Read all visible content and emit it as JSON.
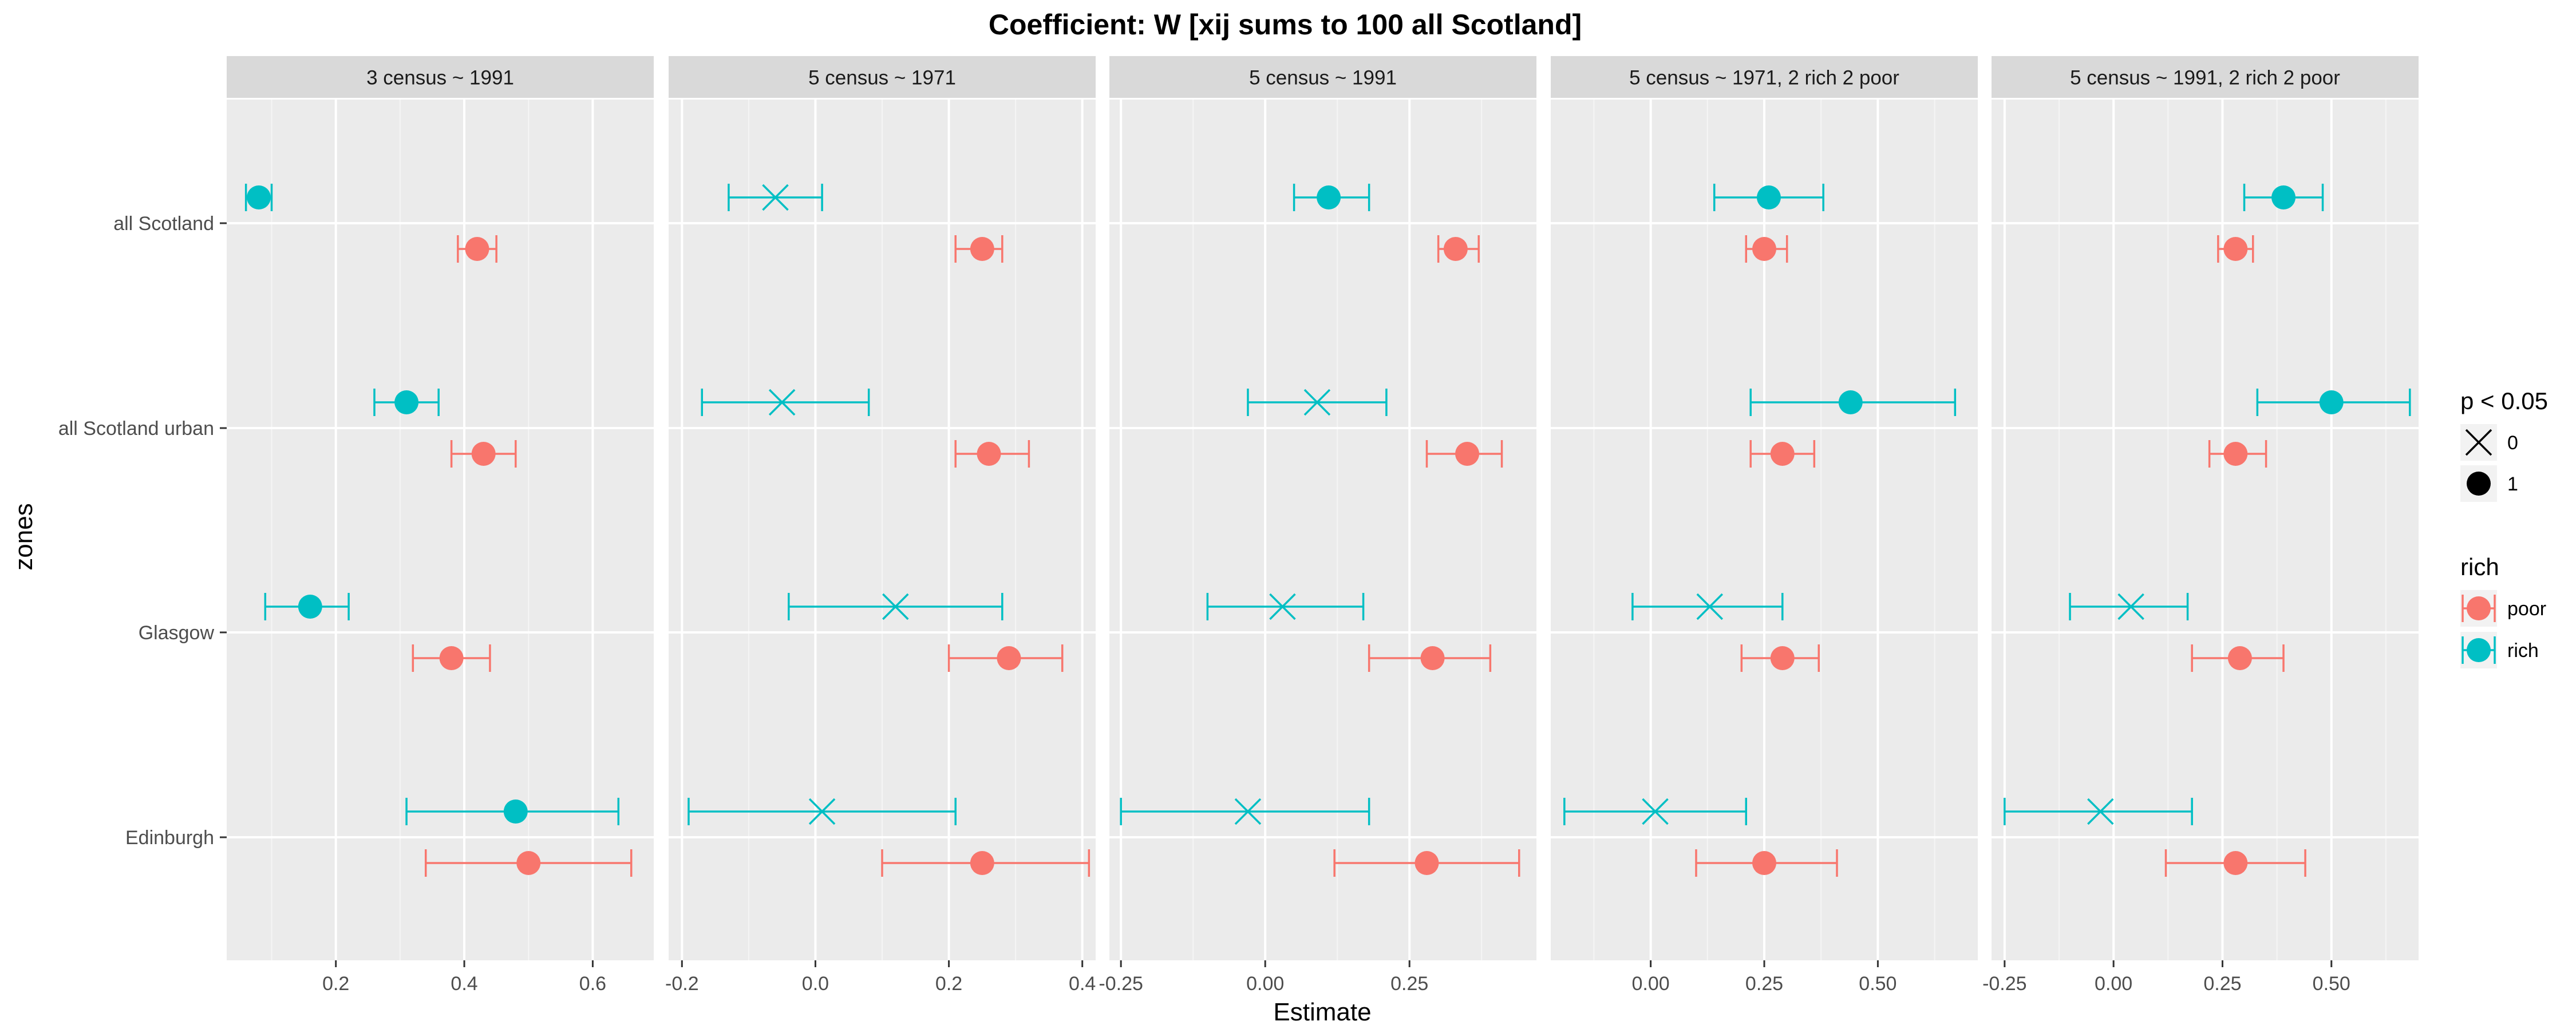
{
  "chart_data": {
    "type": "errorbar",
    "title": "Coefficient: W [xij sums to 100 all Scotland]",
    "xlabel": "Estimate",
    "ylabel": "zones",
    "zones": [
      "all Scotland",
      "all Scotland urban",
      "Glasgow",
      "Edinburgh"
    ],
    "legends": {
      "shape": {
        "title": "p < 0.05",
        "entries": [
          "0",
          "1"
        ]
      },
      "color": {
        "title": "rich",
        "entries": [
          "poor",
          "rich"
        ]
      }
    },
    "colors": {
      "poor": "#F8766D",
      "rich": "#00BFC4"
    },
    "panels": [
      {
        "label": "3 census ~ 1991",
        "xlim": [
          0.03,
          0.695
        ],
        "xticks": [
          0.2,
          0.4,
          0.6
        ],
        "xtick_labels": [
          "0.2",
          "0.4",
          "0.6"
        ],
        "points": [
          {
            "zone": "all Scotland",
            "group": "rich",
            "est": 0.08,
            "lo": 0.06,
            "hi": 0.1,
            "p": "1"
          },
          {
            "zone": "all Scotland",
            "group": "poor",
            "est": 0.42,
            "lo": 0.39,
            "hi": 0.45,
            "p": "1"
          },
          {
            "zone": "all Scotland urban",
            "group": "rich",
            "est": 0.31,
            "lo": 0.26,
            "hi": 0.36,
            "p": "1"
          },
          {
            "zone": "all Scotland urban",
            "group": "poor",
            "est": 0.43,
            "lo": 0.38,
            "hi": 0.48,
            "p": "1"
          },
          {
            "zone": "Glasgow",
            "group": "rich",
            "est": 0.16,
            "lo": 0.09,
            "hi": 0.22,
            "p": "1"
          },
          {
            "zone": "Glasgow",
            "group": "poor",
            "est": 0.38,
            "lo": 0.32,
            "hi": 0.44,
            "p": "1"
          },
          {
            "zone": "Edinburgh",
            "group": "rich",
            "est": 0.48,
            "lo": 0.31,
            "hi": 0.64,
            "p": "1"
          },
          {
            "zone": "Edinburgh",
            "group": "poor",
            "est": 0.5,
            "lo": 0.34,
            "hi": 0.66,
            "p": "1"
          }
        ]
      },
      {
        "label": "5 census ~ 1971",
        "xlim": [
          -0.22,
          0.42
        ],
        "xticks": [
          -0.2,
          0.0,
          0.2,
          0.4
        ],
        "xtick_labels": [
          "-0.2",
          "0.0",
          "0.2",
          "0.4"
        ],
        "points": [
          {
            "zone": "all Scotland",
            "group": "rich",
            "est": -0.06,
            "lo": -0.13,
            "hi": 0.01,
            "p": "0"
          },
          {
            "zone": "all Scotland",
            "group": "poor",
            "est": 0.25,
            "lo": 0.21,
            "hi": 0.28,
            "p": "1"
          },
          {
            "zone": "all Scotland urban",
            "group": "rich",
            "est": -0.05,
            "lo": -0.17,
            "hi": 0.08,
            "p": "0"
          },
          {
            "zone": "all Scotland urban",
            "group": "poor",
            "est": 0.26,
            "lo": 0.21,
            "hi": 0.32,
            "p": "1"
          },
          {
            "zone": "Glasgow",
            "group": "rich",
            "est": 0.12,
            "lo": -0.04,
            "hi": 0.28,
            "p": "0"
          },
          {
            "zone": "Glasgow",
            "group": "poor",
            "est": 0.29,
            "lo": 0.2,
            "hi": 0.37,
            "p": "1"
          },
          {
            "zone": "Edinburgh",
            "group": "rich",
            "est": 0.01,
            "lo": -0.19,
            "hi": 0.21,
            "p": "0"
          },
          {
            "zone": "Edinburgh",
            "group": "poor",
            "est": 0.25,
            "lo": 0.1,
            "hi": 0.41,
            "p": "1"
          }
        ]
      },
      {
        "label": "5 census ~ 1991",
        "xlim": [
          -0.27,
          0.47
        ],
        "xticks": [
          -0.25,
          0.0,
          0.25
        ],
        "xtick_labels": [
          "-0.25",
          "0.00",
          "0.25"
        ],
        "points": [
          {
            "zone": "all Scotland",
            "group": "rich",
            "est": 0.11,
            "lo": 0.05,
            "hi": 0.18,
            "p": "1"
          },
          {
            "zone": "all Scotland",
            "group": "poor",
            "est": 0.33,
            "lo": 0.3,
            "hi": 0.37,
            "p": "1"
          },
          {
            "zone": "all Scotland urban",
            "group": "rich",
            "est": 0.09,
            "lo": -0.03,
            "hi": 0.21,
            "p": "0"
          },
          {
            "zone": "all Scotland urban",
            "group": "poor",
            "est": 0.35,
            "lo": 0.28,
            "hi": 0.41,
            "p": "1"
          },
          {
            "zone": "Glasgow",
            "group": "rich",
            "est": 0.03,
            "lo": -0.1,
            "hi": 0.17,
            "p": "0"
          },
          {
            "zone": "Glasgow",
            "group": "poor",
            "est": 0.29,
            "lo": 0.18,
            "hi": 0.39,
            "p": "1"
          },
          {
            "zone": "Edinburgh",
            "group": "rich",
            "est": -0.03,
            "lo": -0.25,
            "hi": 0.18,
            "p": "0"
          },
          {
            "zone": "Edinburgh",
            "group": "poor",
            "est": 0.28,
            "lo": 0.12,
            "hi": 0.44,
            "p": "1"
          }
        ]
      },
      {
        "label": "5 census ~ 1971, 2 rich 2 poor",
        "xlim": [
          -0.22,
          0.72
        ],
        "xticks": [
          0.0,
          0.25,
          0.5
        ],
        "xtick_labels": [
          "0.00",
          "0.25",
          "0.50"
        ],
        "points": [
          {
            "zone": "all Scotland",
            "group": "rich",
            "est": 0.26,
            "lo": 0.14,
            "hi": 0.38,
            "p": "1"
          },
          {
            "zone": "all Scotland",
            "group": "poor",
            "est": 0.25,
            "lo": 0.21,
            "hi": 0.3,
            "p": "1"
          },
          {
            "zone": "all Scotland urban",
            "group": "rich",
            "est": 0.44,
            "lo": 0.22,
            "hi": 0.67,
            "p": "1"
          },
          {
            "zone": "all Scotland urban",
            "group": "poor",
            "est": 0.29,
            "lo": 0.22,
            "hi": 0.36,
            "p": "1"
          },
          {
            "zone": "Glasgow",
            "group": "rich",
            "est": 0.13,
            "lo": -0.04,
            "hi": 0.29,
            "p": "0"
          },
          {
            "zone": "Glasgow",
            "group": "poor",
            "est": 0.29,
            "lo": 0.2,
            "hi": 0.37,
            "p": "1"
          },
          {
            "zone": "Edinburgh",
            "group": "rich",
            "est": 0.01,
            "lo": -0.19,
            "hi": 0.21,
            "p": "0"
          },
          {
            "zone": "Edinburgh",
            "group": "poor",
            "est": 0.25,
            "lo": 0.1,
            "hi": 0.41,
            "p": "1"
          }
        ]
      },
      {
        "label": "5 census ~ 1991, 2 rich 2 poor",
        "xlim": [
          -0.28,
          0.7
        ],
        "xticks": [
          -0.25,
          0.0,
          0.25,
          0.5
        ],
        "xtick_labels": [
          "-0.25",
          "0.00",
          "0.25",
          "0.50"
        ],
        "points": [
          {
            "zone": "all Scotland",
            "group": "rich",
            "est": 0.39,
            "lo": 0.3,
            "hi": 0.48,
            "p": "1"
          },
          {
            "zone": "all Scotland",
            "group": "poor",
            "est": 0.28,
            "lo": 0.24,
            "hi": 0.32,
            "p": "1"
          },
          {
            "zone": "all Scotland urban",
            "group": "rich",
            "est": 0.5,
            "lo": 0.33,
            "hi": 0.68,
            "p": "1"
          },
          {
            "zone": "all Scotland urban",
            "group": "poor",
            "est": 0.28,
            "lo": 0.22,
            "hi": 0.35,
            "p": "1"
          },
          {
            "zone": "Glasgow",
            "group": "rich",
            "est": 0.04,
            "lo": -0.1,
            "hi": 0.17,
            "p": "0"
          },
          {
            "zone": "Glasgow",
            "group": "poor",
            "est": 0.29,
            "lo": 0.18,
            "hi": 0.39,
            "p": "1"
          },
          {
            "zone": "Edinburgh",
            "group": "rich",
            "est": -0.03,
            "lo": -0.25,
            "hi": 0.18,
            "p": "0"
          },
          {
            "zone": "Edinburgh",
            "group": "poor",
            "est": 0.28,
            "lo": 0.12,
            "hi": 0.44,
            "p": "1"
          }
        ]
      }
    ]
  }
}
